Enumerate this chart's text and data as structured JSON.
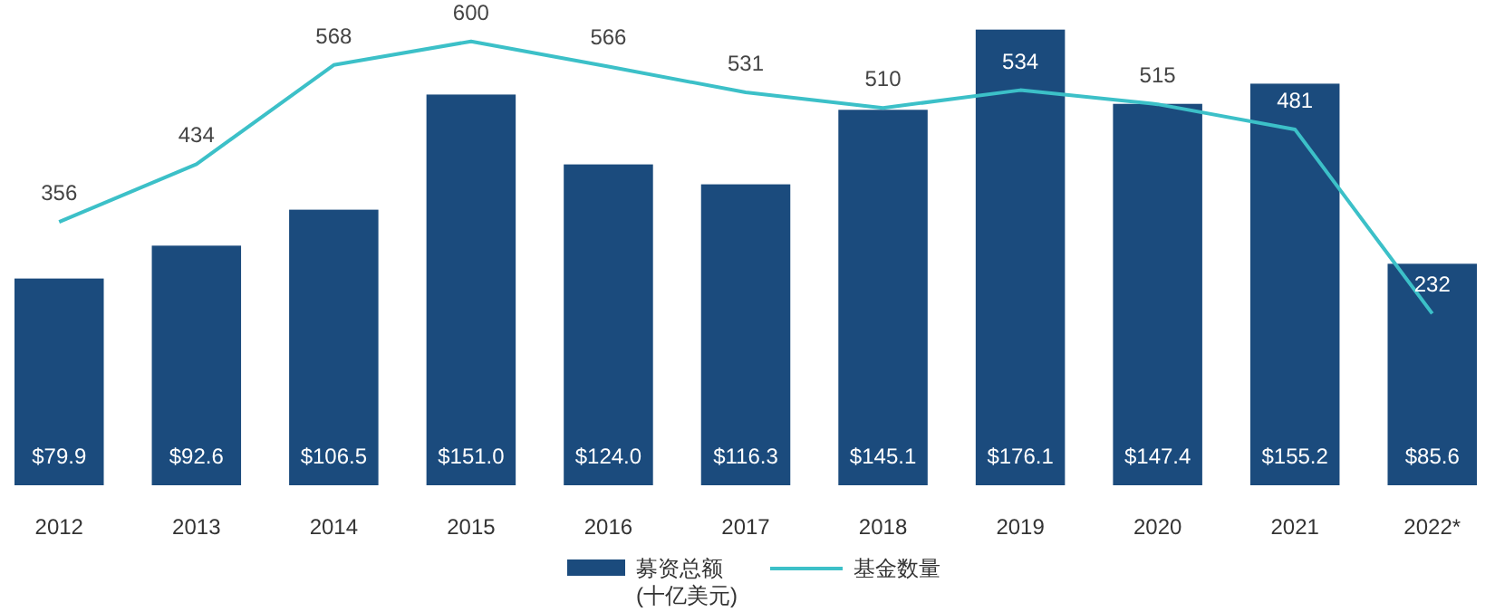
{
  "chart_data": {
    "type": "bar",
    "categories": [
      "2012",
      "2013",
      "2014",
      "2015",
      "2016",
      "2017",
      "2018",
      "2019",
      "2020",
      "2021",
      "2022*"
    ],
    "series": [
      {
        "name": "募资总额\n(十亿美元)",
        "color": "#1b4b7d",
        "values": [
          79.9,
          92.6,
          106.5,
          151.0,
          124.0,
          116.3,
          145.1,
          176.1,
          147.4,
          155.2,
          85.6
        ],
        "value_labels": [
          "$79.9",
          "$92.6",
          "$106.5",
          "$151.0",
          "$124.0",
          "$116.3",
          "$145.1",
          "$176.1",
          "$147.4",
          "$155.2",
          "$85.6"
        ]
      },
      {
        "name": "基金数量",
        "type": "line",
        "axis": "y2",
        "color": "#3cc0c8",
        "values": [
          356,
          434,
          568,
          600,
          566,
          531,
          510,
          534,
          515,
          481,
          232
        ]
      }
    ],
    "data_labels": true,
    "tick_labels": "x",
    "legend": "bottom",
    "marker": "none"
  }
}
